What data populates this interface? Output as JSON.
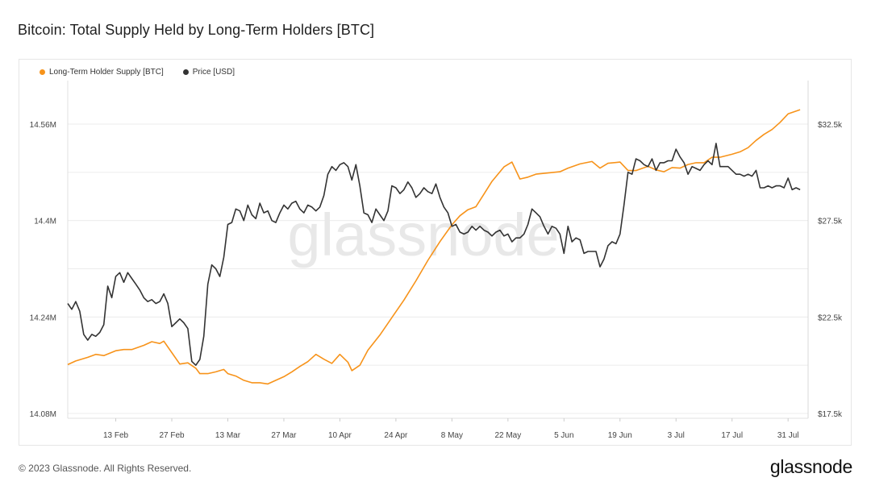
{
  "title": "Bitcoin: Total Supply Held by Long-Term Holders [BTC]",
  "footer": {
    "copyright": "© 2023 Glassnode. All Rights Reserved.",
    "logo": "glassnode"
  },
  "watermark": "glassnode",
  "colors": {
    "lth": "#f7931a",
    "price": "#333333",
    "grid": "#ececec"
  },
  "chart_data": {
    "type": "line",
    "title": "Bitcoin: Total Supply Held by Long-Term Holders [BTC]",
    "xlabel": "",
    "x_tick_labels": [
      "13 Feb",
      "27 Feb",
      "13 Mar",
      "27 Mar",
      "10 Apr",
      "24 Apr",
      "8 May",
      "22 May",
      "5 Jun",
      "19 Jun",
      "3 Jul",
      "17 Jul",
      "31 Jul"
    ],
    "x_start": "2023-02-01",
    "x_end": "2023-08-05",
    "y_left": {
      "label": "",
      "ticks": [
        "14.08M",
        "14.24M",
        "14.4M",
        "14.56M"
      ],
      "range": [
        14.08,
        14.62
      ]
    },
    "y_right": {
      "label": "",
      "ticks": [
        "$17.5k",
        "$22.5k",
        "$27.5k",
        "$32.5k"
      ],
      "range": [
        17.5,
        32.5
      ]
    },
    "grid": true,
    "legend_position": "top-left",
    "series": [
      {
        "name": "Long-Term Holder Supply [BTC]",
        "axis": "left",
        "unit": "M BTC",
        "points": [
          [
            "2023-02-01",
            14.161
          ],
          [
            "2023-02-03",
            14.167
          ],
          [
            "2023-02-06",
            14.173
          ],
          [
            "2023-02-08",
            14.178
          ],
          [
            "2023-02-10",
            14.176
          ],
          [
            "2023-02-13",
            14.184
          ],
          [
            "2023-02-15",
            14.186
          ],
          [
            "2023-02-17",
            14.186
          ],
          [
            "2023-02-20",
            14.193
          ],
          [
            "2023-02-22",
            14.199
          ],
          [
            "2023-02-24",
            14.196
          ],
          [
            "2023-02-25",
            14.2
          ],
          [
            "2023-02-27",
            14.181
          ],
          [
            "2023-03-01",
            14.162
          ],
          [
            "2023-03-03",
            14.164
          ],
          [
            "2023-03-05",
            14.155
          ],
          [
            "2023-03-06",
            14.146
          ],
          [
            "2023-03-08",
            14.146
          ],
          [
            "2023-03-10",
            14.149
          ],
          [
            "2023-03-12",
            14.153
          ],
          [
            "2023-03-13",
            14.146
          ],
          [
            "2023-03-15",
            14.142
          ],
          [
            "2023-03-17",
            14.135
          ],
          [
            "2023-03-19",
            14.131
          ],
          [
            "2023-03-21",
            14.131
          ],
          [
            "2023-03-23",
            14.129
          ],
          [
            "2023-03-25",
            14.135
          ],
          [
            "2023-03-27",
            14.141
          ],
          [
            "2023-03-29",
            14.149
          ],
          [
            "2023-03-31",
            14.158
          ],
          [
            "2023-04-02",
            14.166
          ],
          [
            "2023-04-04",
            14.178
          ],
          [
            "2023-04-06",
            14.17
          ],
          [
            "2023-04-08",
            14.163
          ],
          [
            "2023-04-10",
            14.178
          ],
          [
            "2023-04-12",
            14.165
          ],
          [
            "2023-04-13",
            14.151
          ],
          [
            "2023-04-15",
            14.16
          ],
          [
            "2023-04-17",
            14.185
          ],
          [
            "2023-04-20",
            14.21
          ],
          [
            "2023-04-23",
            14.239
          ],
          [
            "2023-04-26",
            14.268
          ],
          [
            "2023-04-29",
            14.3
          ],
          [
            "2023-05-02",
            14.334
          ],
          [
            "2023-05-05",
            14.365
          ],
          [
            "2023-05-08",
            14.393
          ],
          [
            "2023-05-10",
            14.408
          ],
          [
            "2023-05-12",
            14.418
          ],
          [
            "2023-05-14",
            14.423
          ],
          [
            "2023-05-16",
            14.444
          ],
          [
            "2023-05-18",
            14.465
          ],
          [
            "2023-05-21",
            14.489
          ],
          [
            "2023-05-23",
            14.497
          ],
          [
            "2023-05-25",
            14.469
          ],
          [
            "2023-05-27",
            14.472
          ],
          [
            "2023-05-29",
            14.477
          ],
          [
            "2023-06-01",
            14.479
          ],
          [
            "2023-06-04",
            14.481
          ],
          [
            "2023-06-06",
            14.487
          ],
          [
            "2023-06-09",
            14.494
          ],
          [
            "2023-06-12",
            14.498
          ],
          [
            "2023-06-14",
            14.487
          ],
          [
            "2023-06-16",
            14.495
          ],
          [
            "2023-06-19",
            14.497
          ],
          [
            "2023-06-21",
            14.483
          ],
          [
            "2023-06-23",
            14.483
          ],
          [
            "2023-06-26",
            14.49
          ],
          [
            "2023-06-28",
            14.484
          ],
          [
            "2023-06-30",
            14.481
          ],
          [
            "2023-07-02",
            14.488
          ],
          [
            "2023-07-04",
            14.487
          ],
          [
            "2023-07-06",
            14.493
          ],
          [
            "2023-07-08",
            14.496
          ],
          [
            "2023-07-10",
            14.496
          ],
          [
            "2023-07-12",
            14.505
          ],
          [
            "2023-07-14",
            14.505
          ],
          [
            "2023-07-17",
            14.51
          ],
          [
            "2023-07-19",
            14.514
          ],
          [
            "2023-07-21",
            14.521
          ],
          [
            "2023-07-23",
            14.533
          ],
          [
            "2023-07-25",
            14.543
          ],
          [
            "2023-07-27",
            14.551
          ],
          [
            "2023-07-29",
            14.563
          ],
          [
            "2023-07-31",
            14.577
          ],
          [
            "2023-08-03",
            14.584
          ]
        ]
      },
      {
        "name": "Price [USD]",
        "axis": "right",
        "unit": "k USD",
        "points": [
          [
            "2023-02-01",
            23.2
          ],
          [
            "2023-02-02",
            22.9
          ],
          [
            "2023-02-03",
            23.3
          ],
          [
            "2023-02-04",
            22.8
          ],
          [
            "2023-02-05",
            21.6
          ],
          [
            "2023-02-06",
            21.3
          ],
          [
            "2023-02-07",
            21.6
          ],
          [
            "2023-02-08",
            21.5
          ],
          [
            "2023-02-09",
            21.7
          ],
          [
            "2023-02-10",
            22.1
          ],
          [
            "2023-02-11",
            24.1
          ],
          [
            "2023-02-12",
            23.5
          ],
          [
            "2023-02-13",
            24.6
          ],
          [
            "2023-02-14",
            24.8
          ],
          [
            "2023-02-15",
            24.3
          ],
          [
            "2023-02-16",
            24.8
          ],
          [
            "2023-02-17",
            24.5
          ],
          [
            "2023-02-18",
            24.2
          ],
          [
            "2023-02-19",
            23.9
          ],
          [
            "2023-02-20",
            23.5
          ],
          [
            "2023-02-21",
            23.3
          ],
          [
            "2023-02-22",
            23.4
          ],
          [
            "2023-02-23",
            23.2
          ],
          [
            "2023-02-24",
            23.3
          ],
          [
            "2023-02-25",
            23.7
          ],
          [
            "2023-02-26",
            23.2
          ],
          [
            "2023-02-27",
            22.0
          ],
          [
            "2023-02-28",
            22.2
          ],
          [
            "2023-03-01",
            22.4
          ],
          [
            "2023-03-02",
            22.2
          ],
          [
            "2023-03-03",
            21.9
          ],
          [
            "2023-03-04",
            20.2
          ],
          [
            "2023-03-05",
            20.0
          ],
          [
            "2023-03-06",
            20.3
          ],
          [
            "2023-03-07",
            21.5
          ],
          [
            "2023-03-08",
            24.2
          ],
          [
            "2023-03-09",
            25.2
          ],
          [
            "2023-03-10",
            25.0
          ],
          [
            "2023-03-11",
            24.6
          ],
          [
            "2023-03-12",
            25.6
          ],
          [
            "2023-03-13",
            27.3
          ],
          [
            "2023-03-14",
            27.4
          ],
          [
            "2023-03-15",
            28.1
          ],
          [
            "2023-03-16",
            28.0
          ],
          [
            "2023-03-17",
            27.5
          ],
          [
            "2023-03-18",
            28.3
          ],
          [
            "2023-03-19",
            27.8
          ],
          [
            "2023-03-20",
            27.6
          ],
          [
            "2023-03-21",
            28.4
          ],
          [
            "2023-03-22",
            27.9
          ],
          [
            "2023-03-23",
            28.0
          ],
          [
            "2023-03-24",
            27.5
          ],
          [
            "2023-03-25",
            27.4
          ],
          [
            "2023-03-26",
            27.9
          ],
          [
            "2023-03-27",
            28.3
          ],
          [
            "2023-03-28",
            28.1
          ],
          [
            "2023-03-29",
            28.4
          ],
          [
            "2023-03-30",
            28.5
          ],
          [
            "2023-03-31",
            28.1
          ],
          [
            "2023-04-01",
            27.9
          ],
          [
            "2023-04-02",
            28.3
          ],
          [
            "2023-04-03",
            28.2
          ],
          [
            "2023-04-04",
            28.0
          ],
          [
            "2023-04-05",
            28.2
          ],
          [
            "2023-04-06",
            28.8
          ],
          [
            "2023-04-07",
            29.9
          ],
          [
            "2023-04-08",
            30.3
          ],
          [
            "2023-04-09",
            30.1
          ],
          [
            "2023-04-10",
            30.4
          ],
          [
            "2023-04-11",
            30.5
          ],
          [
            "2023-04-12",
            30.3
          ],
          [
            "2023-04-13",
            29.6
          ],
          [
            "2023-04-14",
            30.4
          ],
          [
            "2023-04-15",
            29.3
          ],
          [
            "2023-04-16",
            27.9
          ],
          [
            "2023-04-17",
            27.8
          ],
          [
            "2023-04-18",
            27.4
          ],
          [
            "2023-04-19",
            28.1
          ],
          [
            "2023-04-20",
            27.8
          ],
          [
            "2023-04-21",
            27.5
          ],
          [
            "2023-04-22",
            28.0
          ],
          [
            "2023-04-23",
            29.3
          ],
          [
            "2023-04-24",
            29.2
          ],
          [
            "2023-04-25",
            28.9
          ],
          [
            "2023-04-26",
            29.1
          ],
          [
            "2023-04-27",
            29.5
          ],
          [
            "2023-04-28",
            29.2
          ],
          [
            "2023-04-29",
            28.7
          ],
          [
            "2023-04-30",
            28.9
          ],
          [
            "2023-05-01",
            29.2
          ],
          [
            "2023-05-02",
            29.0
          ],
          [
            "2023-05-03",
            28.9
          ],
          [
            "2023-05-04",
            29.4
          ],
          [
            "2023-05-05",
            28.7
          ],
          [
            "2023-05-06",
            28.2
          ],
          [
            "2023-05-07",
            27.9
          ],
          [
            "2023-05-08",
            27.2
          ],
          [
            "2023-05-09",
            27.3
          ],
          [
            "2023-05-10",
            26.9
          ],
          [
            "2023-05-11",
            26.8
          ],
          [
            "2023-05-12",
            26.9
          ],
          [
            "2023-05-13",
            27.2
          ],
          [
            "2023-05-14",
            27.0
          ],
          [
            "2023-05-15",
            27.2
          ],
          [
            "2023-05-16",
            27.0
          ],
          [
            "2023-05-17",
            26.9
          ],
          [
            "2023-05-18",
            26.7
          ],
          [
            "2023-05-19",
            26.9
          ],
          [
            "2023-05-20",
            27.0
          ],
          [
            "2023-05-21",
            26.7
          ],
          [
            "2023-05-22",
            26.8
          ],
          [
            "2023-05-23",
            26.4
          ],
          [
            "2023-05-24",
            26.6
          ],
          [
            "2023-05-25",
            26.6
          ],
          [
            "2023-05-26",
            26.8
          ],
          [
            "2023-05-27",
            27.3
          ],
          [
            "2023-05-28",
            28.1
          ],
          [
            "2023-05-29",
            27.9
          ],
          [
            "2023-05-30",
            27.7
          ],
          [
            "2023-05-31",
            27.2
          ],
          [
            "2023-06-01",
            26.8
          ],
          [
            "2023-06-02",
            27.2
          ],
          [
            "2023-06-03",
            27.1
          ],
          [
            "2023-06-04",
            26.8
          ],
          [
            "2023-06-05",
            25.8
          ],
          [
            "2023-06-06",
            27.2
          ],
          [
            "2023-06-07",
            26.4
          ],
          [
            "2023-06-08",
            26.6
          ],
          [
            "2023-06-09",
            26.5
          ],
          [
            "2023-06-10",
            25.8
          ],
          [
            "2023-06-11",
            25.9
          ],
          [
            "2023-06-12",
            25.9
          ],
          [
            "2023-06-13",
            25.9
          ],
          [
            "2023-06-14",
            25.1
          ],
          [
            "2023-06-15",
            25.5
          ],
          [
            "2023-06-16",
            26.2
          ],
          [
            "2023-06-17",
            26.4
          ],
          [
            "2023-06-18",
            26.3
          ],
          [
            "2023-06-19",
            26.8
          ],
          [
            "2023-06-20",
            28.3
          ],
          [
            "2023-06-21",
            30.0
          ],
          [
            "2023-06-22",
            29.9
          ],
          [
            "2023-06-23",
            30.7
          ],
          [
            "2023-06-24",
            30.6
          ],
          [
            "2023-06-25",
            30.4
          ],
          [
            "2023-06-26",
            30.3
          ],
          [
            "2023-06-27",
            30.7
          ],
          [
            "2023-06-28",
            30.1
          ],
          [
            "2023-06-29",
            30.5
          ],
          [
            "2023-06-30",
            30.5
          ],
          [
            "2023-07-01",
            30.6
          ],
          [
            "2023-07-02",
            30.6
          ],
          [
            "2023-07-03",
            31.2
          ],
          [
            "2023-07-04",
            30.8
          ],
          [
            "2023-07-05",
            30.5
          ],
          [
            "2023-07-06",
            29.9
          ],
          [
            "2023-07-07",
            30.3
          ],
          [
            "2023-07-08",
            30.2
          ],
          [
            "2023-07-09",
            30.1
          ],
          [
            "2023-07-10",
            30.4
          ],
          [
            "2023-07-11",
            30.6
          ],
          [
            "2023-07-12",
            30.4
          ],
          [
            "2023-07-13",
            31.5
          ],
          [
            "2023-07-14",
            30.3
          ],
          [
            "2023-07-15",
            30.3
          ],
          [
            "2023-07-16",
            30.3
          ],
          [
            "2023-07-17",
            30.1
          ],
          [
            "2023-07-18",
            29.9
          ],
          [
            "2023-07-19",
            29.9
          ],
          [
            "2023-07-20",
            29.8
          ],
          [
            "2023-07-21",
            29.9
          ],
          [
            "2023-07-22",
            29.8
          ],
          [
            "2023-07-23",
            30.1
          ],
          [
            "2023-07-24",
            29.2
          ],
          [
            "2023-07-25",
            29.2
          ],
          [
            "2023-07-26",
            29.3
          ],
          [
            "2023-07-27",
            29.2
          ],
          [
            "2023-07-28",
            29.3
          ],
          [
            "2023-07-29",
            29.3
          ],
          [
            "2023-07-30",
            29.2
          ],
          [
            "2023-07-31",
            29.7
          ],
          [
            "2023-08-01",
            29.1
          ],
          [
            "2023-08-02",
            29.2
          ],
          [
            "2023-08-03",
            29.1
          ]
        ]
      }
    ]
  }
}
